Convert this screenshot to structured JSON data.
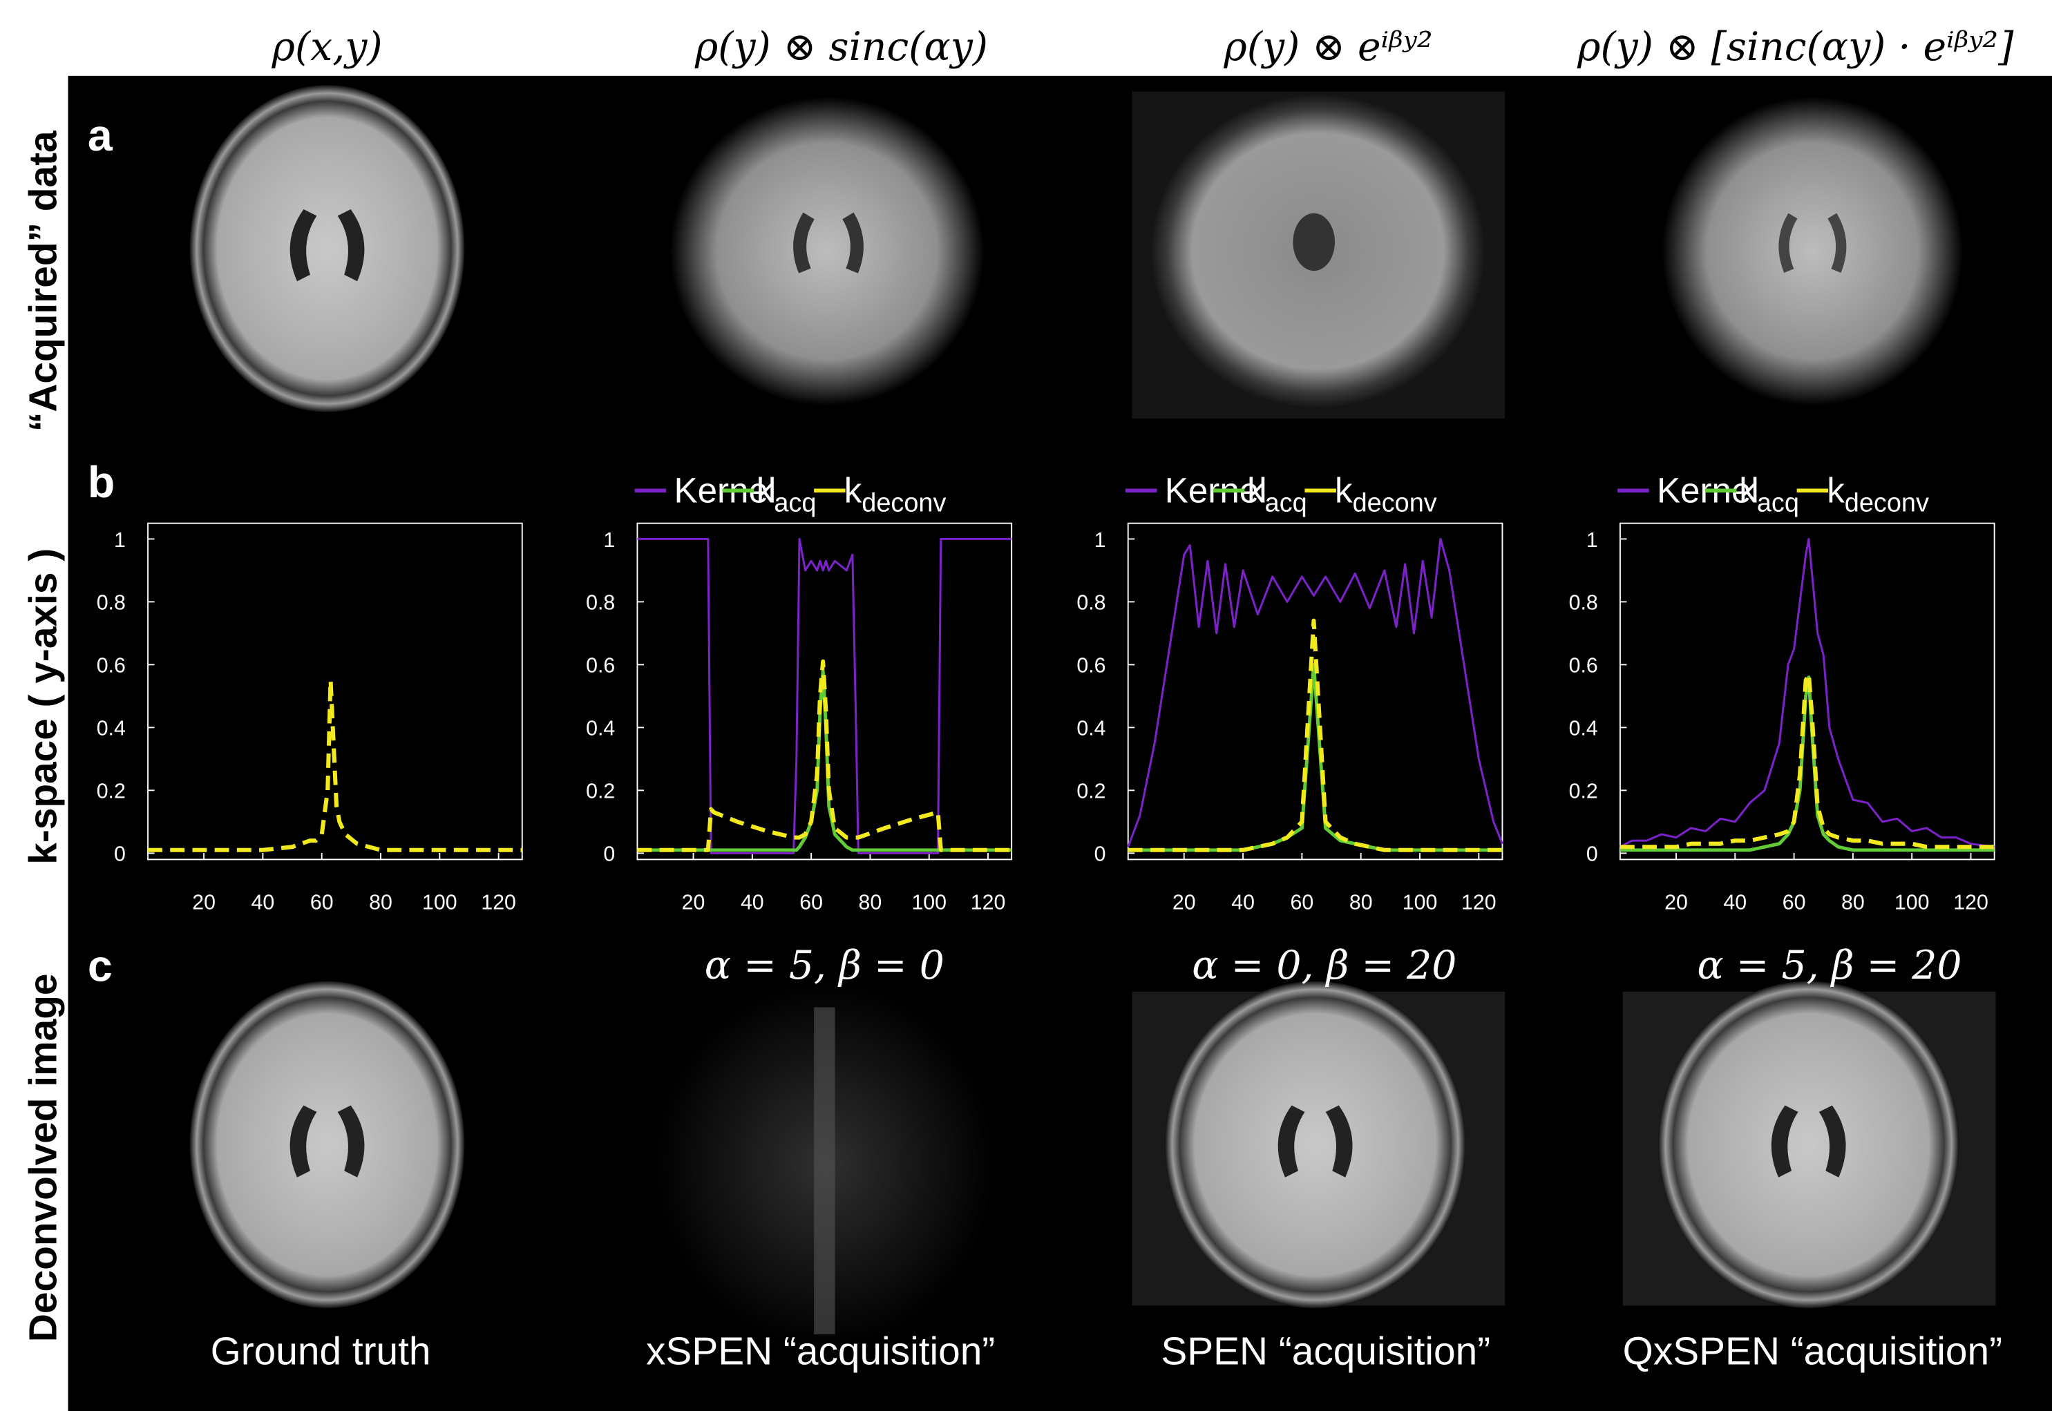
{
  "figure": {
    "column_titles": [
      "ρ(x,y)",
      "ρ(y) ⊗ sinc(αy)",
      "ρ(y) ⊗ eⁱᵝʸ²",
      "ρ(y) ⊗ [sinc(αy) · eⁱᵝʸ²]"
    ],
    "row_labels": [
      "“Acquired” data",
      "k-space ( y-axis )",
      "Deconvolved image"
    ],
    "panel_letters": [
      "a",
      "b",
      "c"
    ],
    "parameters": [
      "α = 5, β = 0",
      "α = 0, β = 20",
      "α = 5, β = 20"
    ],
    "captions": [
      "Ground truth",
      "xSPEN “acquisition”",
      "SPEN “acquisition”",
      "QxSPEN “acquisition”"
    ]
  },
  "chart_data": [
    {
      "type": "line",
      "xlim": [
        1,
        128
      ],
      "ylim": [
        -0.02,
        1.05
      ],
      "xticks": [
        20,
        40,
        60,
        80,
        100,
        120
      ],
      "yticks": [
        0,
        0.2,
        0.4,
        0.6,
        0.8,
        1
      ],
      "x": [
        1,
        20,
        40,
        50,
        56,
        58,
        60,
        62,
        63,
        64,
        65,
        66,
        68,
        72,
        80,
        100,
        128
      ],
      "series": [
        {
          "color": "#f2ea1d",
          "dashed": true,
          "values": [
            0.01,
            0.01,
            0.01,
            0.02,
            0.04,
            0.04,
            0.06,
            0.2,
            0.55,
            0.35,
            0.15,
            0.1,
            0.06,
            0.03,
            0.01,
            0.01,
            0.01
          ]
        }
      ]
    },
    {
      "type": "line",
      "xlim": [
        1,
        128
      ],
      "ylim": [
        -0.02,
        1.05
      ],
      "xticks": [
        20,
        40,
        60,
        80,
        100,
        120
      ],
      "yticks": [
        0,
        0.2,
        0.4,
        0.6,
        0.8,
        1
      ],
      "x": [
        1,
        10,
        20,
        25,
        26,
        27,
        35,
        45,
        54,
        55,
        56,
        58,
        60,
        62,
        63,
        64,
        65,
        66,
        68,
        72,
        74,
        75,
        76,
        85,
        95,
        103,
        104,
        105,
        115,
        128
      ],
      "series": [
        {
          "name": "Kernel",
          "color": "#7b22c8",
          "values": [
            1,
            1,
            1,
            1,
            0,
            0,
            0,
            0,
            0,
            0.3,
            1,
            0.9,
            0.93,
            0.9,
            0.93,
            0.9,
            0.93,
            0.9,
            0.93,
            0.9,
            0.95,
            0.5,
            0,
            0,
            0,
            0,
            1,
            1,
            1,
            1
          ]
        },
        {
          "name": "kacq",
          "color": "#62cc36",
          "values": [
            0.01,
            0.01,
            0.01,
            0.01,
            0.01,
            0.01,
            0.01,
            0.01,
            0.01,
            0.01,
            0.02,
            0.05,
            0.1,
            0.2,
            0.45,
            0.58,
            0.4,
            0.15,
            0.06,
            0.02,
            0.01,
            0.01,
            0.01,
            0.01,
            0.01,
            0.01,
            0.01,
            0.01,
            0.01,
            0.01
          ]
        },
        {
          "name": "kdeconv",
          "color": "#f2ea1d",
          "dashed": true,
          "values": [
            0.01,
            0.01,
            0.01,
            0.01,
            0.14,
            0.13,
            0.1,
            0.07,
            0.05,
            0.05,
            0.05,
            0.06,
            0.1,
            0.25,
            0.5,
            0.61,
            0.45,
            0.2,
            0.08,
            0.05,
            0.05,
            0.05,
            0.05,
            0.08,
            0.11,
            0.13,
            0.01,
            0.01,
            0.01,
            0.01
          ]
        }
      ]
    },
    {
      "type": "line",
      "xlim": [
        1,
        128
      ],
      "ylim": [
        -0.02,
        1.05
      ],
      "xticks": [
        20,
        40,
        60,
        80,
        100,
        120
      ],
      "yticks": [
        0,
        0.2,
        0.4,
        0.6,
        0.8,
        1
      ],
      "x": [
        1,
        5,
        10,
        15,
        20,
        22,
        25,
        28,
        31,
        34,
        37,
        40,
        45,
        50,
        55,
        60,
        64,
        68,
        73,
        78,
        83,
        88,
        92,
        95,
        98,
        101,
        104,
        107,
        110,
        115,
        120,
        125,
        128
      ],
      "series": [
        {
          "name": "Kernel",
          "color": "#7b22c8",
          "values": [
            0.02,
            0.12,
            0.35,
            0.65,
            0.95,
            0.98,
            0.72,
            0.93,
            0.7,
            0.92,
            0.72,
            0.9,
            0.76,
            0.88,
            0.8,
            0.88,
            0.82,
            0.88,
            0.8,
            0.89,
            0.78,
            0.9,
            0.72,
            0.92,
            0.7,
            0.93,
            0.75,
            1.0,
            0.9,
            0.6,
            0.3,
            0.1,
            0.03
          ]
        },
        {
          "name": "kacq",
          "color": "#62cc36",
          "values": [
            0.01,
            0.01,
            0.01,
            0.01,
            0.01,
            0.01,
            0.01,
            0.01,
            0.01,
            0.01,
            0.01,
            0.01,
            0.02,
            0.03,
            0.05,
            0.08,
            0.6,
            0.08,
            0.04,
            0.03,
            0.02,
            0.01,
            0.01,
            0.01,
            0.01,
            0.01,
            0.01,
            0.01,
            0.01,
            0.01,
            0.01,
            0.01,
            0.01
          ]
        },
        {
          "name": "kdeconv",
          "color": "#f2ea1d",
          "dashed": true,
          "values": [
            0.01,
            0.01,
            0.01,
            0.01,
            0.01,
            0.01,
            0.01,
            0.01,
            0.01,
            0.01,
            0.01,
            0.01,
            0.02,
            0.03,
            0.05,
            0.1,
            0.74,
            0.1,
            0.05,
            0.03,
            0.02,
            0.01,
            0.01,
            0.01,
            0.01,
            0.01,
            0.01,
            0.01,
            0.01,
            0.01,
            0.01,
            0.01,
            0.01
          ]
        }
      ]
    },
    {
      "type": "line",
      "xlim": [
        1,
        128
      ],
      "ylim": [
        -0.02,
        1.05
      ],
      "xticks": [
        20,
        40,
        60,
        80,
        100,
        120
      ],
      "yticks": [
        0,
        0.2,
        0.4,
        0.6,
        0.8,
        1
      ],
      "x": [
        1,
        5,
        10,
        15,
        20,
        25,
        30,
        35,
        40,
        45,
        50,
        55,
        58,
        60,
        62,
        64,
        65,
        66,
        68,
        70,
        72,
        75,
        80,
        85,
        90,
        95,
        100,
        105,
        110,
        115,
        120,
        128
      ],
      "series": [
        {
          "name": "Kernel",
          "color": "#7b22c8",
          "values": [
            0.02,
            0.04,
            0.04,
            0.06,
            0.05,
            0.08,
            0.07,
            0.11,
            0.1,
            0.16,
            0.2,
            0.35,
            0.6,
            0.65,
            0.8,
            0.95,
            1.0,
            0.9,
            0.7,
            0.63,
            0.4,
            0.3,
            0.17,
            0.16,
            0.1,
            0.11,
            0.07,
            0.08,
            0.05,
            0.05,
            0.03,
            0.02
          ]
        },
        {
          "name": "kacq",
          "color": "#62cc36",
          "values": [
            0.01,
            0.01,
            0.01,
            0.01,
            0.01,
            0.01,
            0.01,
            0.01,
            0.01,
            0.01,
            0.02,
            0.03,
            0.06,
            0.1,
            0.2,
            0.5,
            0.56,
            0.4,
            0.12,
            0.06,
            0.04,
            0.02,
            0.01,
            0.01,
            0.01,
            0.01,
            0.01,
            0.01,
            0.01,
            0.01,
            0.01,
            0.01
          ]
        },
        {
          "name": "kdeconv",
          "color": "#f2ea1d",
          "dashed": true,
          "values": [
            0.02,
            0.02,
            0.02,
            0.02,
            0.02,
            0.03,
            0.03,
            0.03,
            0.04,
            0.04,
            0.05,
            0.06,
            0.07,
            0.1,
            0.25,
            0.55,
            0.57,
            0.45,
            0.15,
            0.08,
            0.06,
            0.05,
            0.04,
            0.04,
            0.03,
            0.03,
            0.03,
            0.02,
            0.02,
            0.02,
            0.02,
            0.02
          ]
        }
      ]
    }
  ]
}
